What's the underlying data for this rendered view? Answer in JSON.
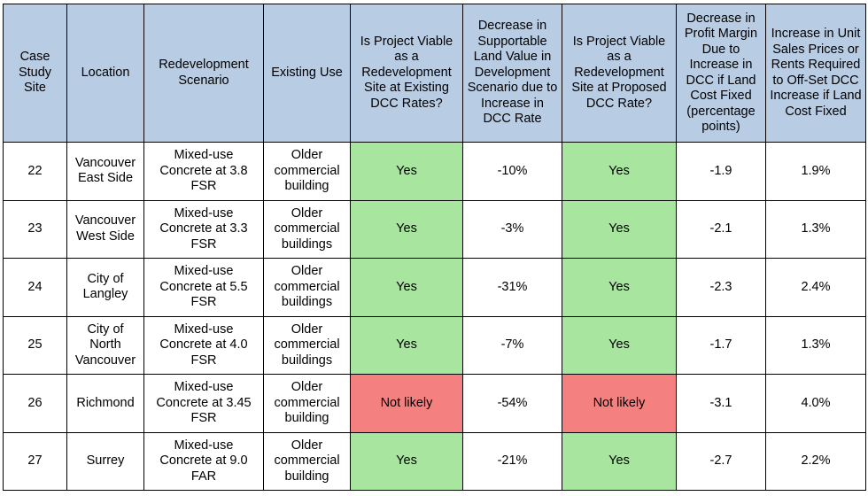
{
  "headers": [
    "Case Study Site",
    "Location",
    "Redevelopment Scenario",
    "Existing Use",
    "Is Project Viable as a Redevelopment Site at Existing DCC Rates?",
    "Decrease in Supportable Land Value in Development Scenario due to Increase in DCC Rate",
    "Is Project Viable as a Redevelopment Site at Proposed DCC Rate?",
    "Decrease in Profit Margin Due to Increase in DCC if Land Cost Fixed (percentage points)",
    "Increase in Unit Sales Prices or Rents Required to Off-Set DCC Increase if Land Cost Fixed"
  ],
  "rows": [
    [
      "22",
      "Vancouver East Side",
      "Mixed-use Concrete at 3.8 FSR",
      "Older commercial building",
      "Yes",
      "-10%",
      "Yes",
      "-1.9",
      "1.9%"
    ],
    [
      "23",
      "Vancouver West Side",
      "Mixed-use Concrete at 3.3 FSR",
      "Older commercial buildings",
      "Yes",
      "-3%",
      "Yes",
      "-2.1",
      "1.3%"
    ],
    [
      "24",
      "City of Langley",
      "Mixed-use Concrete at 5.5 FSR",
      "Older commercial buildings",
      "Yes",
      "-31%",
      "Yes",
      "-2.3",
      "2.4%"
    ],
    [
      "25",
      "City of North Vancouver",
      "Mixed-use Concrete at 4.0 FSR",
      "Older commercial buildings",
      "Yes",
      "-7%",
      "Yes",
      "-1.7",
      "1.3%"
    ],
    [
      "26",
      "Richmond",
      "Mixed-use Concrete at 3.45 FSR",
      "Older commercial building",
      "Not likely",
      "-54%",
      "Not likely",
      "-3.1",
      "4.0%"
    ],
    [
      "27",
      "Surrey",
      "Mixed-use Concrete at 9.0 FAR",
      "Older commercial building",
      "Yes",
      "-21%",
      "Yes",
      "-2.7",
      "2.2%"
    ]
  ],
  "colors": {
    "header_bg": "#b8cce4",
    "viable_yes": "#a8e6a0",
    "viable_no": "#f58080"
  }
}
